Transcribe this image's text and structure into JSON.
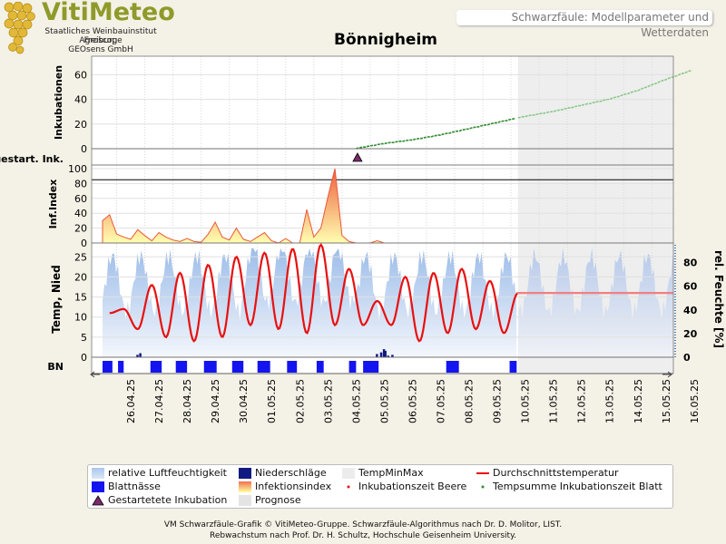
{
  "logo": {
    "name": "VitiMeteo",
    "lines": [
      "Staatliches Weinbauinstitut Freiburg",
      "Agroscope",
      "GEOsens GmbH"
    ],
    "color": "#8f9a2a"
  },
  "header": {
    "subtitle": "Schwarzfäule: Modellparameter und Wetterdaten"
  },
  "title": "Bönnigheim",
  "panels": {
    "inkubationen": {
      "ylabel": "Inkubationen",
      "ticks": [
        0,
        20,
        40,
        60
      ]
    },
    "gestart": {
      "label": "gestart. Ink."
    },
    "infindex": {
      "ylabel": "Inf.Index",
      "ticks": [
        0,
        20,
        40,
        60,
        80,
        100
      ]
    },
    "temp": {
      "ylabel": "Temp, Nied",
      "ticks": [
        0,
        5,
        10,
        15,
        20,
        25
      ],
      "ylabel_right": "rel. Feuchte [%]",
      "ticks_right": [
        0,
        20,
        40,
        60,
        80
      ]
    },
    "bn": {
      "label": "BN"
    }
  },
  "dates": [
    "26.04.25",
    "27.04.25",
    "28.04.25",
    "29.04.25",
    "30.04.25",
    "01.05.25",
    "02.05.25",
    "03.05.25",
    "04.05.25",
    "05.05.25",
    "06.05.25",
    "07.05.25",
    "08.05.25",
    "09.05.25",
    "10.05.25",
    "11.05.25",
    "12.05.25",
    "13.05.25",
    "14.05.25",
    "15.05.25",
    "16.05.25"
  ],
  "legend": {
    "items": [
      "relative Luftfeuchtigkeit",
      "Niederschläge",
      "TempMinMax",
      "Durchschnittstemperatur",
      "Blattnässe",
      "Infektionsindex",
      "Inkubationszeit Beere",
      "Tempsumme Inkubationszeit Blatt",
      "Gestartetete Inkubation",
      "Prognose"
    ]
  },
  "footer": {
    "line1": "VM Schwarzfäule-Grafik © VitiMeteo-Gruppe. Schwarzfäule-Algorithmus nach Dr. D. Molitor, LIST.",
    "line2": "Rebwachstum nach Prof. Dr. H. Schultz, Hochschule Geisenheim University."
  },
  "colors": {
    "background": "#f4f1e6",
    "humidity": "#a9c6ee",
    "precip": "#101a80",
    "temp": "#e81010",
    "temp_forecast": "#f08080",
    "leafwet": "#1414f0",
    "incubation": "#2f8a2f",
    "incubation_forecast": "#8ac88a",
    "infection": "#f07050",
    "forecast_bg": "#e8e8e8",
    "marker": "#7a2a6a"
  },
  "chart_data": [
    {
      "type": "line",
      "title": "Inkubationen",
      "x_start": "25.04.25",
      "forecast_from": "09.05.25 18:00",
      "ylim": [
        0,
        75
      ],
      "series": [
        {
          "x": [
            "04.05.25",
            "05.05.25",
            "06.05.25",
            "07.05.25",
            "08.05.25",
            "09.05.25",
            "10.05.25",
            "11.05.25",
            "12.05.25",
            "13.05.25",
            "14.05.25",
            "15.05.25",
            "16.05.25"
          ],
          "values": [
            0,
            4,
            7,
            11,
            16,
            21,
            26,
            30,
            35,
            40,
            47,
            56,
            64
          ]
        }
      ]
    },
    {
      "type": "area",
      "title": "Inf.Index",
      "ylim": [
        0,
        100
      ],
      "x_hours": [
        0,
        6,
        12,
        18,
        24,
        30,
        36,
        42,
        48,
        54,
        60,
        66,
        72,
        78,
        84,
        90,
        96,
        102,
        108,
        114,
        120,
        126,
        132,
        138,
        144,
        150,
        156,
        162,
        168,
        174,
        180,
        186,
        192,
        198,
        204,
        210,
        216,
        222,
        228,
        234,
        240
      ],
      "values": [
        30,
        38,
        12,
        8,
        5,
        18,
        10,
        3,
        14,
        8,
        4,
        2,
        6,
        2,
        1,
        12,
        28,
        8,
        4,
        20,
        5,
        2,
        8,
        14,
        3,
        0,
        6,
        0,
        0,
        45,
        8,
        20,
        62,
        100,
        10,
        2,
        0,
        0,
        0,
        3,
        0
      ]
    },
    {
      "type": "line",
      "title": "Temp, Nied",
      "ylim": [
        0,
        28
      ],
      "ylim_right": [
        0,
        95
      ],
      "series": [
        {
          "name": "Durchschnittstemperatur",
          "x_days": [
            0,
            0.5,
            1,
            1.5,
            2,
            2.5,
            3,
            3.5,
            4,
            4.5,
            5,
            5.5,
            6,
            6.5,
            7,
            7.5,
            8,
            8.5,
            9,
            9.5,
            10,
            10.5,
            11,
            11.5,
            12,
            12.5,
            13,
            13.5,
            14,
            14.5
          ],
          "values": [
            11,
            12,
            7,
            18,
            5,
            21,
            4,
            23,
            5,
            25,
            8,
            26,
            7,
            27,
            6,
            28,
            8,
            22,
            8,
            14,
            8,
            20,
            4,
            21,
            6,
            22,
            7,
            19,
            6,
            16
          ]
        }
      ]
    }
  ]
}
